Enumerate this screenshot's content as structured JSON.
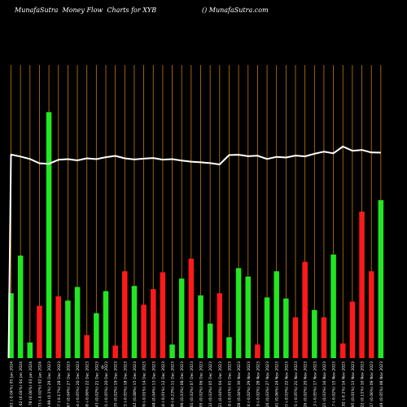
{
  "header": {
    "title_left": "MunafaSutra  Money Flow  Charts for XYB",
    "title_right": "() MunafaSutra.com"
  },
  "colors": {
    "background": "#000000",
    "grid": "#c8790a",
    "up": "#22e622",
    "down": "#ff1a1a",
    "line": "#ffffff",
    "label": "#ffffff"
  },
  "chart_data": {
    "type": "bar",
    "title": "MunafaSutra  Money Flow  Charts for XYB",
    "marker": "0",
    "bars": [
      {
        "label": "249.61 (-0.04%) 05 Jan 2024",
        "value": 62,
        "color": "up"
      },
      {
        "label": "249.62 (0.04%) 04 Jan 2024",
        "value": 98,
        "color": "up"
      },
      {
        "label": "249.78 (0.06%) 03 Jan 2024",
        "value": 15,
        "color": "up"
      },
      {
        "label": "249.73 (-0.02%) 02 Jan 2024",
        "value": 50,
        "color": "down"
      },
      {
        "label": "249.99 (0.1%) 29 Dec 2023",
        "value": 235,
        "color": "up"
      },
      {
        "label": "249.57 (-0.17%) 28 Dec 2023",
        "value": 59,
        "color": "down"
      },
      {
        "label": "249.67 (0.04%) 27 Dec 2023",
        "value": 55,
        "color": "up"
      },
      {
        "label": "249.54 (-0.05%) 26 Dec 2023",
        "value": 68,
        "color": "up"
      },
      {
        "label": "249.38 (-0.06%) 22 Dec 2023",
        "value": 22,
        "color": "down"
      },
      {
        "label": "249.43 (0.02%) 21 Dec 2023",
        "value": 43,
        "color": "up"
      },
      {
        "label": "249.31 (-0.05%) 20 Dec 2023",
        "value": 64,
        "color": "up"
      },
      {
        "label": "249.35 (0.02%) 19 Dec 2023",
        "value": 12,
        "color": "down"
      },
      {
        "label": "249.22 (-0.05%) 18 Dec 2023",
        "value": 83,
        "color": "down"
      },
      {
        "label": "249.42 (0.08%) 15 Dec 2023",
        "value": 69,
        "color": "up"
      },
      {
        "label": "249.39 (-0.01%) 14 Dec 2023",
        "value": 51,
        "color": "down"
      },
      {
        "label": "249.48 (0.04%) 13 Dec 2023",
        "value": 66,
        "color": "down"
      },
      {
        "label": "249.46 (-0.01%) 12 Dec 2023",
        "value": 82,
        "color": "down"
      },
      {
        "label": "248.88 (-0.23%) 11 Dec 2023",
        "value": 13,
        "color": "up"
      },
      {
        "label": "248.96 (0.03%) 08 Dec 2023",
        "value": 76,
        "color": "up"
      },
      {
        "label": "249.01 (0.02%) 07 Dec 2023",
        "value": 95,
        "color": "down"
      },
      {
        "label": "249.05 (0.02%) 06 Dec 2023",
        "value": 60,
        "color": "up"
      },
      {
        "label": "249.12 (0.03%) 05 Dec 2023",
        "value": 33,
        "color": "up"
      },
      {
        "label": "249.21 (0.04%) 04 Dec 2023",
        "value": 62,
        "color": "down"
      },
      {
        "label": "249.18 (-0.01%) 01 Dec 2023",
        "value": 20,
        "color": "up"
      },
      {
        "label": "249.28 (0.04%) 30 Nov 2023",
        "value": 86,
        "color": "up"
      },
      {
        "label": "249.24 (-0.02%) 29 Nov 2023",
        "value": 78,
        "color": "up"
      },
      {
        "label": "249.19 (-0.02%) 28 Nov 2023",
        "value": 13,
        "color": "down"
      },
      {
        "label": "249.26 (0.03%) 27 Nov 2023",
        "value": 58,
        "color": "up"
      },
      {
        "label": "249.41 (0.06%) 24 Nov 2023",
        "value": 83,
        "color": "up"
      },
      {
        "label": "249.33 (-0.03%) 22 Nov 2023",
        "value": 57,
        "color": "up"
      },
      {
        "label": "249.21 (-0.05%) 21 Nov 2023",
        "value": 39,
        "color": "down"
      },
      {
        "label": "249.26 (0.02%) 20 Nov 2023",
        "value": 92,
        "color": "down"
      },
      {
        "label": "249.13 (-0.05%) 17 Nov 2023",
        "value": 46,
        "color": "up"
      },
      {
        "label": "249.21 (0.03%) 16 Nov 2023",
        "value": 39,
        "color": "down"
      },
      {
        "label": "249.17 (-0.02%) 15 Nov 2023",
        "value": 99,
        "color": "up"
      },
      {
        "label": "248.92 (-0.1%) 14 Nov 2023",
        "value": 14,
        "color": "down"
      },
      {
        "label": "248.95 (0.01%) 13 Nov 2023",
        "value": 54,
        "color": "down"
      },
      {
        "label": "249.22 (0.11%) 10 Nov 2023",
        "value": 140,
        "color": "down"
      },
      {
        "label": "249.37 (0.06%) 09 Nov 2023",
        "value": 83,
        "color": "down"
      },
      {
        "label": "249.49 (0.05%) 08 Nov 2023",
        "value": 151,
        "color": "up"
      }
    ],
    "line": [
      249.61,
      249.62,
      249.78,
      249.73,
      249.99,
      249.57,
      249.67,
      249.54,
      249.38,
      249.43,
      249.31,
      249.35,
      249.22,
      249.42,
      249.39,
      249.48,
      249.46,
      248.88,
      248.96,
      249.01,
      249.05,
      249.12,
      249.21,
      249.18,
      249.28,
      249.24,
      249.19,
      249.26,
      249.41,
      249.33,
      249.21,
      249.26,
      249.13,
      249.21,
      249.17,
      248.92,
      248.95,
      249.22,
      249.37,
      249.49
    ]
  }
}
